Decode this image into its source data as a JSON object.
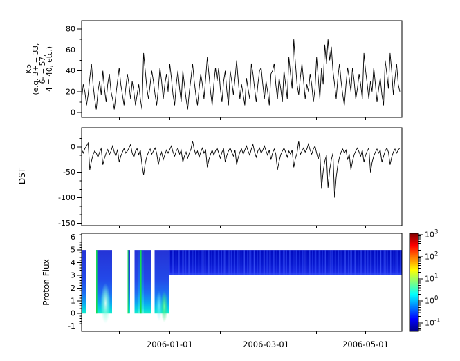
{
  "figure": {
    "background": "#ffffff",
    "frame_color": "#000000"
  },
  "labels": {
    "kp": "Kp\n(e.g. 3+ = 33,\n6- = 57,\n4 = 40, etc.)",
    "dst": "DST",
    "proton_flux": "Proton Flux"
  },
  "xaxis": {
    "tick_days": [
      23,
      54,
      85,
      113,
      144,
      174
    ],
    "tick_labels": [
      "",
      "2006-01-01",
      "",
      "2006-03-01",
      "",
      "2006-05-01"
    ]
  },
  "chart_data": [
    {
      "type": "line",
      "name": "kp-index",
      "ylabel": "Kp (e.g. 3+ = 33, 6- = 57, 4 = 40, etc.)",
      "ylim": [
        -4.6,
        88
      ],
      "yticks": [
        0,
        20,
        40,
        60,
        80
      ],
      "ytick_minor_step": 10,
      "line_color": "#000000",
      "x_is_day_index": true,
      "values": [
        13,
        27,
        20,
        7,
        17,
        33,
        47,
        27,
        13,
        3,
        20,
        30,
        17,
        40,
        23,
        10,
        27,
        37,
        20,
        13,
        3,
        17,
        30,
        43,
        27,
        17,
        7,
        23,
        37,
        27,
        13,
        30,
        20,
        7,
        17,
        27,
        13,
        3,
        57,
        40,
        23,
        13,
        27,
        40,
        30,
        17,
        7,
        23,
        43,
        30,
        13,
        27,
        37,
        20,
        47,
        33,
        17,
        7,
        27,
        40,
        23,
        10,
        40,
        27,
        13,
        3,
        20,
        33,
        47,
        30,
        17,
        7,
        23,
        37,
        27,
        13,
        33,
        53,
        37,
        20,
        7,
        27,
        43,
        30,
        43,
        23,
        10,
        30,
        40,
        20,
        7,
        40,
        30,
        17,
        33,
        50,
        30,
        13,
        27,
        17,
        7,
        33,
        23,
        13,
        47,
        37,
        23,
        10,
        27,
        40,
        43,
        27,
        13,
        30,
        20,
        7,
        37,
        40,
        47,
        27,
        13,
        33,
        23,
        10,
        40,
        27,
        13,
        53,
        37,
        23,
        70,
        47,
        27,
        17,
        33,
        47,
        30,
        13,
        27,
        20,
        37,
        27,
        10,
        23,
        53,
        33,
        13,
        43,
        27,
        65,
        47,
        70,
        50,
        63,
        40,
        27,
        13,
        33,
        47,
        30,
        17,
        7,
        27,
        43,
        33,
        20,
        43,
        30,
        13,
        23,
        37,
        27,
        13,
        57,
        40,
        27,
        13,
        30,
        20,
        43,
        27,
        10,
        23,
        33,
        17,
        7,
        50,
        37,
        23,
        57,
        40,
        17,
        33,
        47,
        27,
        20
      ]
    },
    {
      "type": "line",
      "name": "dst-index",
      "ylabel": "DST",
      "ylim": [
        -155,
        38
      ],
      "yticks": [
        0,
        -50,
        -100,
        -150
      ],
      "ytick_minor_step": 16.667,
      "line_color": "#000000",
      "x_is_day_index": true,
      "values": [
        -5,
        -12,
        -3,
        2,
        8,
        -45,
        -28,
        -15,
        -8,
        -12,
        -20,
        -10,
        -3,
        -35,
        -22,
        -12,
        -5,
        -15,
        -8,
        2,
        -10,
        -18,
        -5,
        -30,
        -18,
        -10,
        -3,
        -12,
        -8,
        -2,
        5,
        -12,
        -20,
        -8,
        -3,
        -15,
        -6,
        -35,
        -55,
        -32,
        -18,
        -10,
        -4,
        -14,
        -8,
        -2,
        -12,
        -35,
        -20,
        -10,
        -25,
        -15,
        -6,
        -12,
        -5,
        2,
        -10,
        -18,
        -8,
        -2,
        -14,
        -6,
        -30,
        -18,
        -10,
        -22,
        -12,
        -4,
        12,
        -5,
        -15,
        -8,
        -20,
        -10,
        -2,
        -12,
        -6,
        -40,
        -25,
        -14,
        -6,
        -16,
        -8,
        -2,
        -12,
        -22,
        -10,
        -4,
        -30,
        -16,
        -8,
        -2,
        -10,
        -18,
        -6,
        -35,
        -20,
        -10,
        -4,
        -14,
        -6,
        2,
        -8,
        -16,
        -4,
        5,
        -10,
        -20,
        -8,
        -2,
        -12,
        -6,
        2,
        -8,
        -16,
        -6,
        -25,
        -12,
        -4,
        -14,
        -45,
        -28,
        -15,
        -8,
        -2,
        -10,
        -20,
        -8,
        -14,
        -6,
        -40,
        -22,
        -12,
        12,
        -15,
        -8,
        -2,
        -10,
        -4,
        6,
        -6,
        -14,
        -4,
        2,
        -12,
        -24,
        -10,
        -82,
        -48,
        -28,
        -16,
        -80,
        -45,
        -25,
        -12,
        -100,
        -60,
        -35,
        -20,
        -10,
        -4,
        -12,
        -6,
        -25,
        -14,
        -45,
        -28,
        -15,
        -8,
        -2,
        -10,
        -18,
        -6,
        -30,
        -16,
        -8,
        -2,
        -50,
        -30,
        -18,
        -10,
        -4,
        -12,
        -6,
        -30,
        -18,
        -8,
        -2,
        -10,
        -35,
        -20,
        -10,
        -4,
        -12,
        -6,
        -2
      ]
    },
    {
      "type": "heatmap",
      "name": "proton-flux",
      "ylabel": "Proton Flux",
      "ylim": [
        -1.4,
        6.31
      ],
      "yticks": [
        -1,
        0,
        1,
        2,
        3,
        4,
        5,
        6
      ],
      "ytick_minor_step": 0.2,
      "bands": [
        {
          "x0": 118,
          "x1": 124,
          "v0": 0,
          "v1": 5,
          "style": "blue"
        },
        {
          "x0": 139,
          "x1": 162,
          "v0": 0,
          "v1": 5,
          "style": "blue"
        },
        {
          "x0": 184.5,
          "x1": 188,
          "v0": 0,
          "v1": 5,
          "style": "blue"
        },
        {
          "x0": 194.5,
          "x1": 218,
          "v0": 0,
          "v1": 5,
          "style": "blue"
        },
        {
          "x0": 223.5,
          "x1": 244,
          "v0": 0,
          "v1": 5,
          "style": "blue"
        },
        {
          "x0": 244,
          "x1": 581,
          "v0": 3,
          "v1": 5,
          "style": "dark"
        }
      ],
      "cyan_halos": [
        [
          199.5,
          208
        ]
      ],
      "green_streaks": [
        [
          139,
          140.6
        ],
        [
          184.5,
          185.6
        ],
        [
          202,
          204.6
        ]
      ],
      "blobs": [
        {
          "cx": 152.5,
          "cv": 0.8,
          "rx": 7,
          "rv": 1.6,
          "style": "white"
        },
        {
          "cx": 230,
          "cv": 0.6,
          "rx": 4.5,
          "rv": 1.2,
          "style": "cyan"
        },
        {
          "cx": 237.5,
          "cv": 0.55,
          "rx": 5,
          "rv": 1.25,
          "style": "green"
        }
      ],
      "palette": {
        "green_streak": "#14dc50"
      },
      "colorbar": {
        "scale": "log",
        "colormap": "jet",
        "tick_exponents": [
          3,
          2,
          1,
          0,
          -1
        ],
        "tick_labels": [
          "10^3",
          "10^2",
          "10^1",
          "10^0",
          "10^-1"
        ],
        "log_range": [
          -1.37,
          3.06
        ]
      }
    }
  ]
}
